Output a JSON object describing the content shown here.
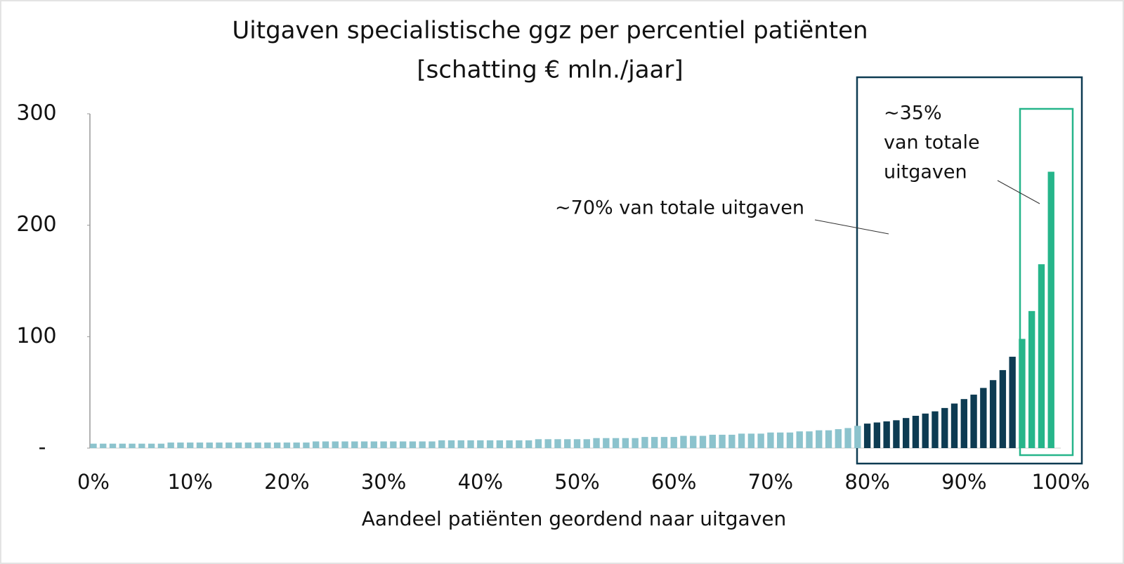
{
  "chart_data": {
    "type": "bar",
    "title": "Uitgaven specialistische ggz per percentiel patiënten",
    "subtitle": "[schatting € mln./jaar]",
    "x_label": "Aandeel patiënten geordend naar uitgaven",
    "x": [
      0,
      1,
      2,
      3,
      4,
      5,
      6,
      7,
      8,
      9,
      10,
      11,
      12,
      13,
      14,
      15,
      16,
      17,
      18,
      19,
      20,
      21,
      22,
      23,
      24,
      25,
      26,
      27,
      28,
      29,
      30,
      31,
      32,
      33,
      34,
      35,
      36,
      37,
      38,
      39,
      40,
      41,
      42,
      43,
      44,
      45,
      46,
      47,
      48,
      49,
      50,
      51,
      52,
      53,
      54,
      55,
      56,
      57,
      58,
      59,
      60,
      61,
      62,
      63,
      64,
      65,
      66,
      67,
      68,
      69,
      70,
      71,
      72,
      73,
      74,
      75,
      76,
      77,
      78,
      79,
      80,
      81,
      82,
      83,
      84,
      85,
      86,
      87,
      88,
      89,
      90,
      91,
      92,
      93,
      94,
      95,
      96,
      97,
      98,
      99
    ],
    "values": [
      4,
      4,
      4,
      4,
      4,
      4,
      4,
      4,
      5,
      5,
      5,
      5,
      5,
      5,
      5,
      5,
      5,
      5,
      5,
      5,
      5,
      5,
      5,
      6,
      6,
      6,
      6,
      6,
      6,
      6,
      6,
      6,
      6,
      6,
      6,
      6,
      7,
      7,
      7,
      7,
      7,
      7,
      7,
      7,
      7,
      7,
      8,
      8,
      8,
      8,
      8,
      8,
      9,
      9,
      9,
      9,
      9,
      10,
      10,
      10,
      10,
      11,
      11,
      11,
      12,
      12,
      12,
      13,
      13,
      13,
      14,
      14,
      14,
      15,
      15,
      16,
      16,
      17,
      18,
      20,
      22,
      23,
      24,
      25,
      27,
      29,
      31,
      33,
      36,
      40,
      44,
      48,
      54,
      61,
      70,
      82,
      98,
      123,
      165,
      248
    ],
    "colors": [
      "#8cc3cd",
      "#8cc3cd",
      "#8cc3cd",
      "#8cc3cd",
      "#8cc3cd",
      "#8cc3cd",
      "#8cc3cd",
      "#8cc3cd",
      "#8cc3cd",
      "#8cc3cd",
      "#8cc3cd",
      "#8cc3cd",
      "#8cc3cd",
      "#8cc3cd",
      "#8cc3cd",
      "#8cc3cd",
      "#8cc3cd",
      "#8cc3cd",
      "#8cc3cd",
      "#8cc3cd",
      "#8cc3cd",
      "#8cc3cd",
      "#8cc3cd",
      "#8cc3cd",
      "#8cc3cd",
      "#8cc3cd",
      "#8cc3cd",
      "#8cc3cd",
      "#8cc3cd",
      "#8cc3cd",
      "#8cc3cd",
      "#8cc3cd",
      "#8cc3cd",
      "#8cc3cd",
      "#8cc3cd",
      "#8cc3cd",
      "#8cc3cd",
      "#8cc3cd",
      "#8cc3cd",
      "#8cc3cd",
      "#8cc3cd",
      "#8cc3cd",
      "#8cc3cd",
      "#8cc3cd",
      "#8cc3cd",
      "#8cc3cd",
      "#8cc3cd",
      "#8cc3cd",
      "#8cc3cd",
      "#8cc3cd",
      "#8cc3cd",
      "#8cc3cd",
      "#8cc3cd",
      "#8cc3cd",
      "#8cc3cd",
      "#8cc3cd",
      "#8cc3cd",
      "#8cc3cd",
      "#8cc3cd",
      "#8cc3cd",
      "#8cc3cd",
      "#8cc3cd",
      "#8cc3cd",
      "#8cc3cd",
      "#8cc3cd",
      "#8cc3cd",
      "#8cc3cd",
      "#8cc3cd",
      "#8cc3cd",
      "#8cc3cd",
      "#8cc3cd",
      "#8cc3cd",
      "#8cc3cd",
      "#8cc3cd",
      "#8cc3cd",
      "#8cc3cd",
      "#8cc3cd",
      "#8cc3cd",
      "#8cc3cd",
      "#8cc3cd",
      "#0d3b52",
      "#0d3b52",
      "#0d3b52",
      "#0d3b52",
      "#0d3b52",
      "#0d3b52",
      "#0d3b52",
      "#0d3b52",
      "#0d3b52",
      "#0d3b52",
      "#0d3b52",
      "#0d3b52",
      "#0d3b52",
      "#0d3b52",
      "#0d3b52",
      "#0d3b52",
      "#26b58a",
      "#26b58a",
      "#26b58a",
      "#26b58a"
    ],
    "xlim": [
      0,
      100
    ],
    "xticks": [
      {
        "value": 0,
        "label": "0%"
      },
      {
        "value": 10,
        "label": "10%"
      },
      {
        "value": 20,
        "label": "20%"
      },
      {
        "value": 30,
        "label": "30%"
      },
      {
        "value": 40,
        "label": "40%"
      },
      {
        "value": 50,
        "label": "50%"
      },
      {
        "value": 60,
        "label": "60%"
      },
      {
        "value": 70,
        "label": "70%"
      },
      {
        "value": 80,
        "label": "80%"
      },
      {
        "value": 90,
        "label": "90%"
      },
      {
        "value": 100,
        "label": "100%"
      }
    ],
    "ylim": [
      0,
      300
    ],
    "yticks": [
      {
        "value": 0,
        "label": "-"
      },
      100,
      200,
      300
    ],
    "grid": false,
    "annotations": [
      {
        "text": "~70% van totale uitgaven"
      },
      {
        "lines": [
          "~35%",
          "van totale",
          "uitgaven"
        ]
      }
    ]
  }
}
